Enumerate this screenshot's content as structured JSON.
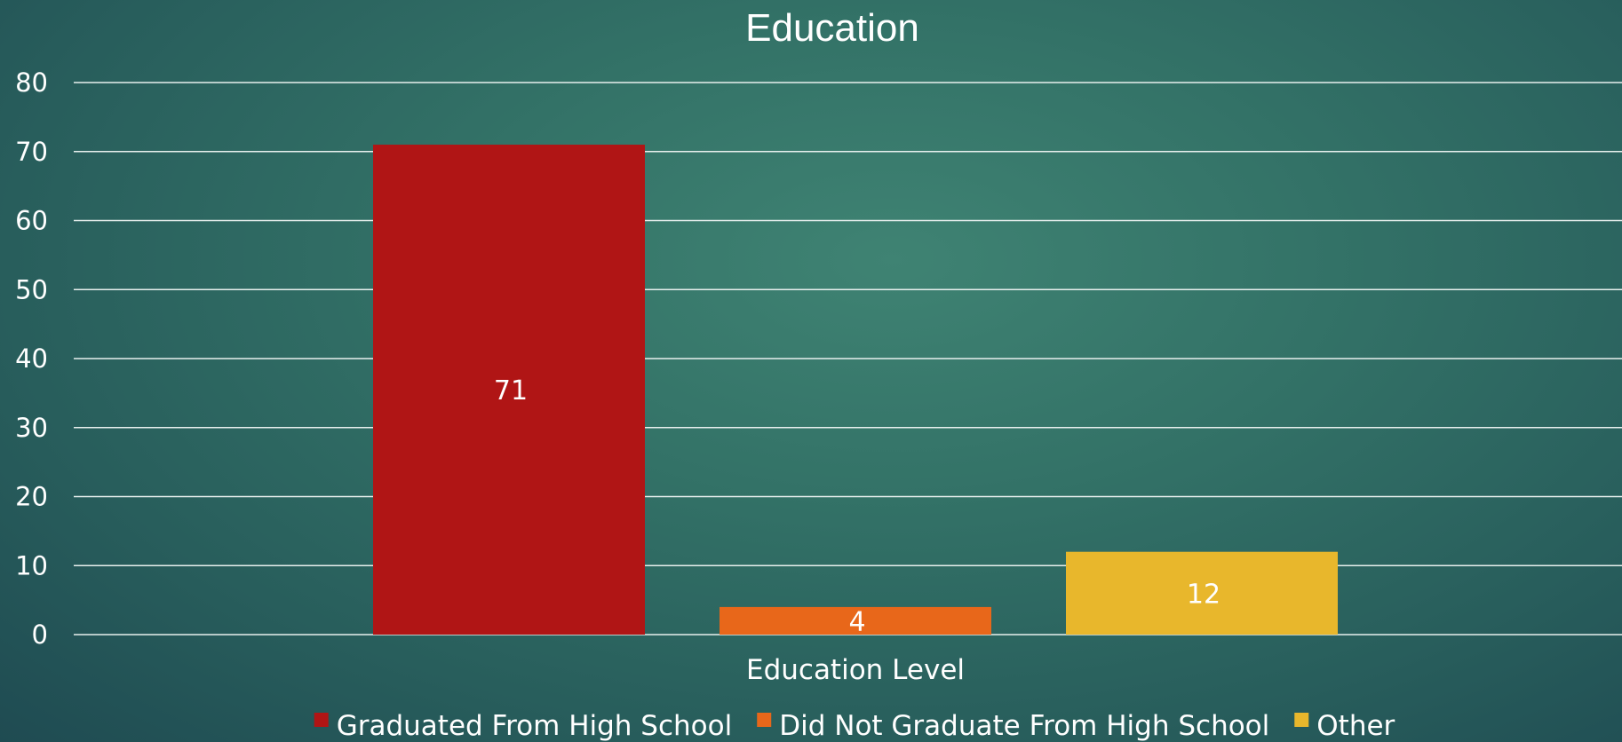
{
  "chart_data": {
    "type": "bar",
    "title": "Education",
    "xlabel": "Education Level",
    "ylabel": "",
    "ylim": [
      0,
      80
    ],
    "yticks": [
      0,
      10,
      20,
      30,
      40,
      50,
      60,
      70,
      80
    ],
    "grid": true,
    "legend_position": "bottom",
    "categories": [
      "Education Level"
    ],
    "series": [
      {
        "name": "Graduated From High School",
        "values": [
          71
        ],
        "color": "#b01515"
      },
      {
        "name": "Did Not Graduate From High School",
        "values": [
          4
        ],
        "color": "#e8671a"
      },
      {
        "name": "Other",
        "values": [
          12
        ],
        "color": "#e8b72c"
      }
    ]
  }
}
